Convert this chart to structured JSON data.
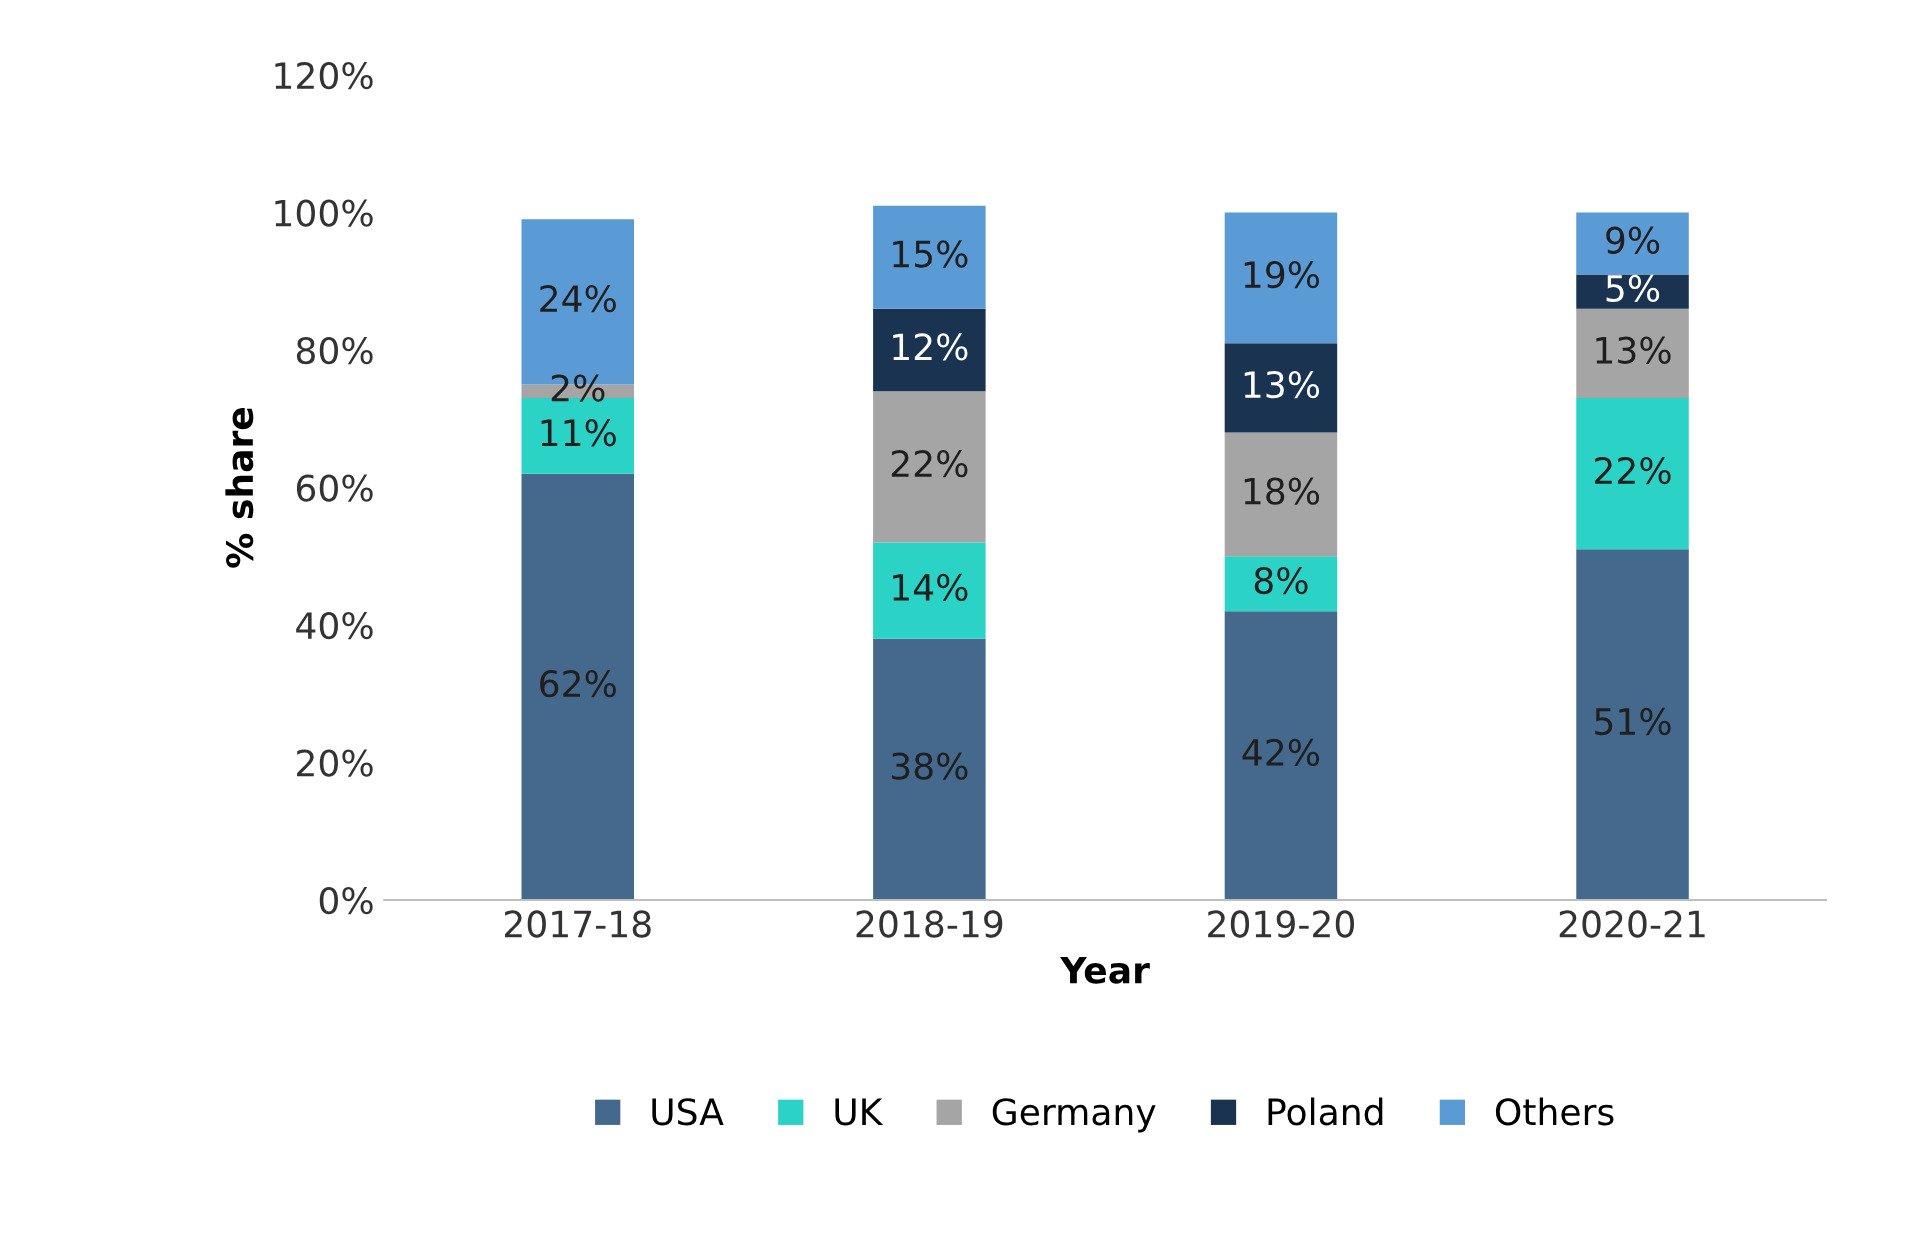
{
  "chart_data": {
    "type": "bar",
    "stacked": true,
    "xlabel": "Year",
    "ylabel": "% share",
    "categories": [
      "2017-18",
      "2018-19",
      "2019-20",
      "2020-21"
    ],
    "series": [
      {
        "name": "USA",
        "color": "#44698c",
        "values": [
          62,
          38,
          42,
          51
        ],
        "value_labels": [
          "62%",
          "38%",
          "42%",
          "51%"
        ]
      },
      {
        "name": "UK",
        "color": "#2bd3c6",
        "values": [
          11,
          14,
          8,
          22
        ],
        "value_labels": [
          "11%",
          "14%",
          "8%",
          "22%"
        ]
      },
      {
        "name": "Germany",
        "color": "#a5a5a5",
        "values": [
          2,
          22,
          18,
          13
        ],
        "value_labels": [
          "2%",
          "22%",
          "18%",
          "13%"
        ]
      },
      {
        "name": "Poland",
        "color": "#1a3350",
        "values": [
          null,
          12,
          13,
          5
        ],
        "value_labels": [
          null,
          "12%",
          "13%",
          "5%"
        ]
      },
      {
        "name": "Others",
        "color": "#5b9bd5",
        "values": [
          24,
          15,
          19,
          9
        ],
        "value_labels": [
          "24%",
          "15%",
          "19%",
          "9%"
        ]
      }
    ],
    "ylim": [
      0,
      120
    ],
    "yticks": [
      {
        "value": 0,
        "label": "0%"
      },
      {
        "value": 20,
        "label": "20%"
      },
      {
        "value": 40,
        "label": "40%"
      },
      {
        "value": 60,
        "label": "60%"
      },
      {
        "value": 80,
        "label": "80%"
      },
      {
        "value": 100,
        "label": "100%"
      },
      {
        "value": 120,
        "label": "120%"
      }
    ],
    "legend": "bottom",
    "grid": false
  }
}
